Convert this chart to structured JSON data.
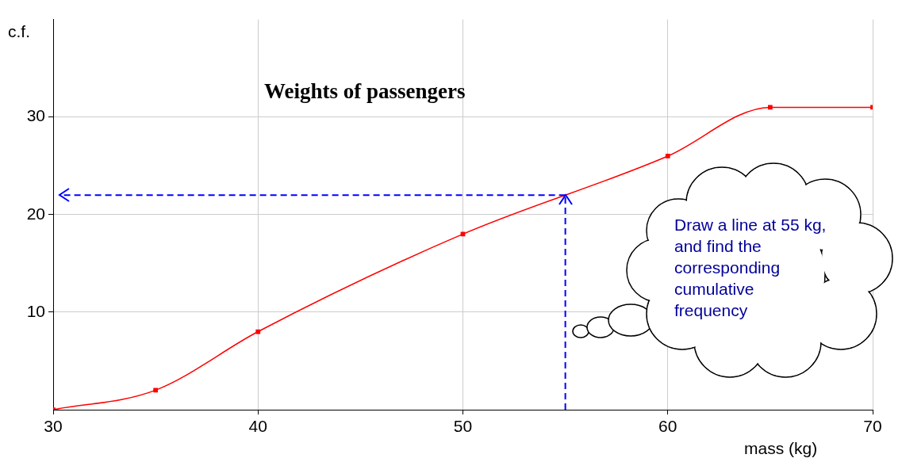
{
  "chart_data": {
    "type": "line",
    "title": "Weights of passengers",
    "xlabel": "mass (kg)",
    "ylabel": "c.f.",
    "x": [
      30,
      35,
      40,
      50,
      60,
      65,
      70
    ],
    "series": [
      {
        "color": "#ff0000",
        "values": [
          0,
          2,
          8,
          18,
          26,
          31,
          31
        ]
      }
    ],
    "xlim": [
      30,
      70
    ],
    "xticks": [
      30,
      40,
      50,
      60,
      70
    ],
    "ylim": [
      0,
      40
    ],
    "yticks": [
      10,
      20,
      30
    ],
    "grid": true,
    "legend": false,
    "marker": "square",
    "line_style": "solid",
    "ref_lines": [
      {
        "axis": "x",
        "value": 55,
        "color": "#0000ff",
        "line_style": "dashed"
      },
      {
        "axis": "y",
        "value": 22,
        "color": "#0000ff",
        "line_style": "dashed"
      }
    ],
    "annotations": [
      "Draw a line at 55 kg, and find the corresponding cumulative frequency"
    ]
  }
}
